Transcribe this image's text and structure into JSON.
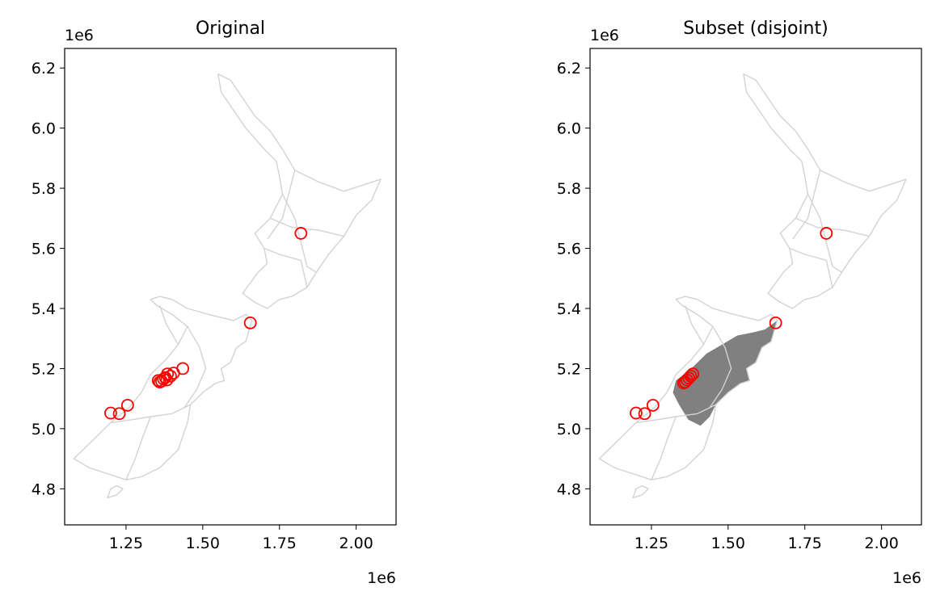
{
  "chart_data": [
    {
      "type": "scatter",
      "title": "Original",
      "xlabel": "",
      "ylabel": "",
      "x_offset_label": "1e6",
      "y_offset_label": "1e6",
      "xlim": [
        1.05,
        2.13
      ],
      "ylim": [
        4.68,
        6.265
      ],
      "xticks": [
        1.25,
        1.5,
        1.75,
        2.0
      ],
      "xtick_labels": [
        "1.25",
        "1.50",
        "1.75",
        "2.00"
      ],
      "yticks": [
        4.8,
        5.0,
        5.2,
        5.4,
        5.6,
        5.8,
        6.0,
        6.2
      ],
      "ytick_labels": [
        "4.8",
        "5.0",
        "5.2",
        "5.4",
        "5.6",
        "5.8",
        "6.0",
        "6.2"
      ],
      "grid": false,
      "background_map": "New Zealand region boundaries",
      "highlighted_region": null,
      "marker": "open-circle",
      "marker_color": "#ff0000",
      "boundary_color": "#d3d3d3",
      "points": [
        {
          "x": 1.82,
          "y": 5.65
        },
        {
          "x": 1.655,
          "y": 5.352
        },
        {
          "x": 1.435,
          "y": 5.2
        },
        {
          "x": 1.405,
          "y": 5.185
        },
        {
          "x": 1.395,
          "y": 5.175
        },
        {
          "x": 1.385,
          "y": 5.182
        },
        {
          "x": 1.378,
          "y": 5.17
        },
        {
          "x": 1.372,
          "y": 5.165
        },
        {
          "x": 1.366,
          "y": 5.158
        },
        {
          "x": 1.36,
          "y": 5.155
        },
        {
          "x": 1.355,
          "y": 5.16
        },
        {
          "x": 1.383,
          "y": 5.162
        },
        {
          "x": 1.255,
          "y": 5.078
        },
        {
          "x": 1.228,
          "y": 5.05
        },
        {
          "x": 1.2,
          "y": 5.052
        }
      ]
    },
    {
      "type": "scatter",
      "title": "Subset (disjoint)",
      "xlabel": "",
      "ylabel": "",
      "x_offset_label": "1e6",
      "y_offset_label": "1e6",
      "xlim": [
        1.05,
        2.13
      ],
      "ylim": [
        4.68,
        6.265
      ],
      "xticks": [
        1.25,
        1.5,
        1.75,
        2.0
      ],
      "xtick_labels": [
        "1.25",
        "1.50",
        "1.75",
        "2.00"
      ],
      "yticks": [
        4.8,
        5.0,
        5.2,
        5.4,
        5.6,
        5.8,
        6.0,
        6.2
      ],
      "ytick_labels": [
        "4.8",
        "5.0",
        "5.2",
        "5.4",
        "5.6",
        "5.8",
        "6.0",
        "6.2"
      ],
      "grid": false,
      "background_map": "New Zealand region boundaries",
      "highlighted_region": "Canterbury",
      "highlight_color": "#808080",
      "marker": "open-circle",
      "marker_color": "#ff0000",
      "boundary_color": "#d3d3d3",
      "points": [
        {
          "x": 1.82,
          "y": 5.65
        },
        {
          "x": 1.655,
          "y": 5.352
        },
        {
          "x": 1.385,
          "y": 5.182
        },
        {
          "x": 1.378,
          "y": 5.175
        },
        {
          "x": 1.372,
          "y": 5.168
        },
        {
          "x": 1.366,
          "y": 5.162
        },
        {
          "x": 1.36,
          "y": 5.155
        },
        {
          "x": 1.355,
          "y": 5.152
        },
        {
          "x": 1.255,
          "y": 5.078
        },
        {
          "x": 1.228,
          "y": 5.05
        },
        {
          "x": 1.2,
          "y": 5.052
        }
      ]
    }
  ]
}
